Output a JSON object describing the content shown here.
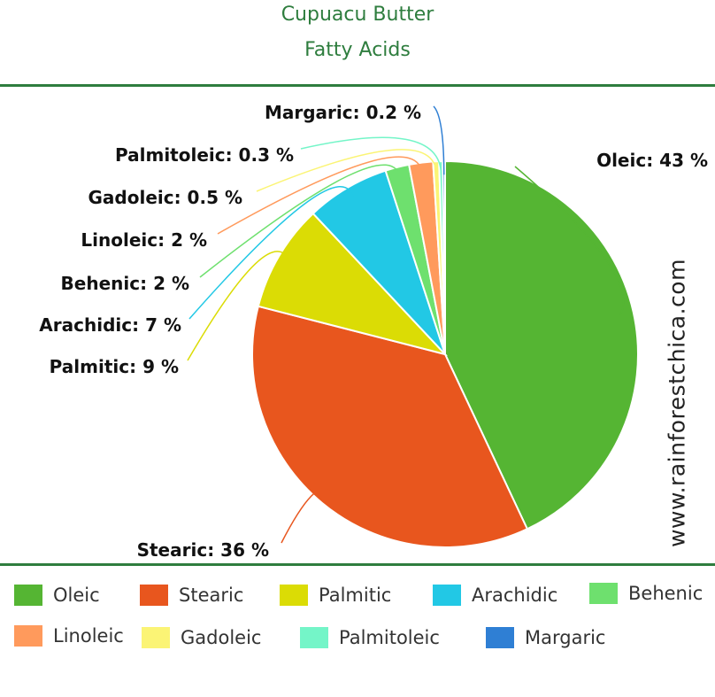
{
  "title_line1": "Cupuacu Butter",
  "title_line2": "Fatty Acids",
  "watermark": "www.rainforestchica.com",
  "chart_data": {
    "type": "pie",
    "slices": [
      {
        "name": "Oleic",
        "value": 43,
        "label": "Oleic: 43 %",
        "color": "#55b533"
      },
      {
        "name": "Stearic",
        "value": 36,
        "label": "Stearic: 36 %",
        "color": "#e8561e"
      },
      {
        "name": "Palmitic",
        "value": 9,
        "label": "Palmitic: 9 %",
        "color": "#dbdc05"
      },
      {
        "name": "Arachidic",
        "value": 7,
        "label": "Arachidic: 7 %",
        "color": "#22c8e5"
      },
      {
        "name": "Behenic",
        "value": 2,
        "label": "Behenic: 2 %",
        "color": "#6ee06e"
      },
      {
        "name": "Linoleic",
        "value": 2,
        "label": "Linoleic: 2 %",
        "color": "#ff9a5c"
      },
      {
        "name": "Gadoleic",
        "value": 0.5,
        "label": "Gadoleic: 0.5 %",
        "color": "#fbf475"
      },
      {
        "name": "Palmitoleic",
        "value": 0.3,
        "label": "Palmitoleic: 0.3 %",
        "color": "#74f5c8"
      },
      {
        "name": "Margaric",
        "value": 0.2,
        "label": "Margaric: 0.2 %",
        "color": "#2f7fd4"
      }
    ],
    "legend_position": "bottom"
  },
  "legend": [
    {
      "label": "Oleic",
      "color": "#55b533"
    },
    {
      "label": "Stearic",
      "color": "#e8561e"
    },
    {
      "label": "Palmitic",
      "color": "#dbdc05"
    },
    {
      "label": "Arachidic",
      "color": "#22c8e5"
    },
    {
      "label": "Behenic",
      "color": "#6ee06e"
    },
    {
      "label": "Linoleic",
      "color": "#ff9a5c"
    },
    {
      "label": "Gadoleic",
      "color": "#fbf475"
    },
    {
      "label": "Palmitoleic",
      "color": "#74f5c8"
    },
    {
      "label": "Margaric",
      "color": "#2f7fd4"
    }
  ]
}
